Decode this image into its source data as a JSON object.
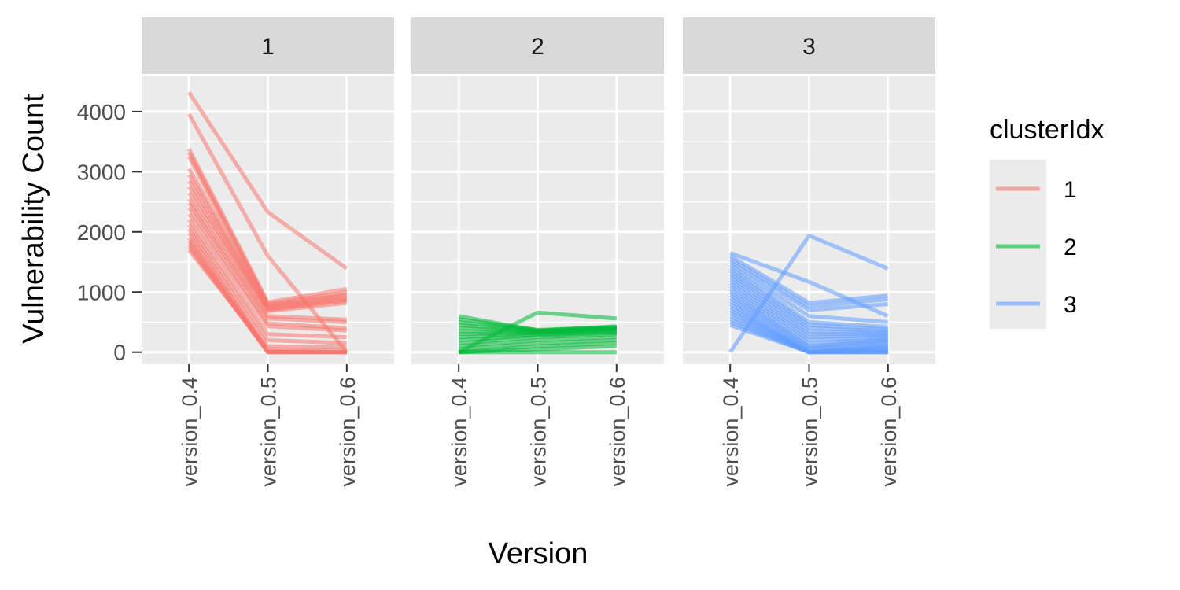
{
  "chart_data": {
    "type": "line",
    "xlabel": "Version",
    "ylabel": "Vulnerability Count",
    "categories": [
      "version_0.4",
      "version_0.5",
      "version_0.6"
    ],
    "ylim": [
      -200,
      4600
    ],
    "y_ticks": [
      0,
      1000,
      2000,
      3000,
      4000
    ],
    "grid": true,
    "legend": {
      "title": "clusterIdx",
      "placement": "right",
      "entries": [
        {
          "label": "1",
          "color": "#F8766D"
        },
        {
          "label": "2",
          "color": "#00BA38"
        },
        {
          "label": "3",
          "color": "#619CFF"
        }
      ]
    },
    "panels": [
      {
        "label": "1",
        "color": "#F8766D",
        "series": [
          {
            "values": [
              4320,
              2330,
              1390
            ]
          },
          {
            "values": [
              3960,
              1600,
              0
            ]
          },
          {
            "values": [
              3380,
              830,
              1050
            ]
          },
          {
            "values": [
              3320,
              800,
              1000
            ]
          },
          {
            "values": [
              3250,
              780,
              960
            ]
          },
          {
            "values": [
              3050,
              760,
              940
            ]
          },
          {
            "values": [
              2950,
              740,
              900
            ]
          },
          {
            "values": [
              2850,
              720,
              880
            ]
          },
          {
            "values": [
              2750,
              700,
              860
            ]
          },
          {
            "values": [
              2650,
              680,
              820
            ]
          },
          {
            "values": [
              2550,
              600,
              540
            ]
          },
          {
            "values": [
              2480,
              560,
              500
            ]
          },
          {
            "values": [
              2400,
              480,
              400
            ]
          },
          {
            "values": [
              2300,
              430,
              360
            ]
          },
          {
            "values": [
              2200,
              300,
              250
            ]
          },
          {
            "values": [
              2120,
              200,
              150
            ]
          },
          {
            "values": [
              2050,
              100,
              80
            ]
          },
          {
            "values": [
              1980,
              20,
              0
            ]
          },
          {
            "values": [
              1900,
              0,
              0
            ]
          },
          {
            "values": [
              1850,
              0,
              0
            ]
          },
          {
            "values": [
              1800,
              0,
              0
            ]
          },
          {
            "values": [
              1750,
              0,
              0
            ]
          },
          {
            "values": [
              1700,
              50,
              20
            ]
          }
        ]
      },
      {
        "label": "2",
        "color": "#00BA38",
        "series": [
          {
            "values": [
              0,
              660,
              560
            ]
          },
          {
            "values": [
              600,
              360,
              430
            ]
          },
          {
            "values": [
              550,
              370,
              420
            ]
          },
          {
            "values": [
              500,
              360,
              410
            ]
          },
          {
            "values": [
              450,
              350,
              400
            ]
          },
          {
            "values": [
              400,
              340,
              390
            ]
          },
          {
            "values": [
              350,
              330,
              380
            ]
          },
          {
            "values": [
              300,
              320,
              360
            ]
          },
          {
            "values": [
              250,
              300,
              340
            ]
          },
          {
            "values": [
              200,
              280,
              320
            ]
          },
          {
            "values": [
              150,
              250,
              300
            ]
          },
          {
            "values": [
              100,
              200,
              250
            ]
          },
          {
            "values": [
              50,
              150,
              200
            ]
          },
          {
            "values": [
              0,
              100,
              150
            ]
          },
          {
            "values": [
              0,
              50,
              100
            ]
          },
          {
            "values": [
              0,
              0,
              0
            ]
          }
        ]
      },
      {
        "label": "3",
        "color": "#619CFF",
        "series": [
          {
            "values": [
              0,
              1940,
              1390
            ]
          },
          {
            "values": [
              1650,
              1170,
              600
            ]
          },
          {
            "values": [
              1600,
              820,
              940
            ]
          },
          {
            "values": [
              1550,
              760,
              880
            ]
          },
          {
            "values": [
              1500,
              700,
              800
            ]
          },
          {
            "values": [
              1450,
              600,
              500
            ]
          },
          {
            "values": [
              1400,
              500,
              420
            ]
          },
          {
            "values": [
              1350,
              450,
              380
            ]
          },
          {
            "values": [
              1300,
              400,
              350
            ]
          },
          {
            "values": [
              1250,
              350,
              320
            ]
          },
          {
            "values": [
              1200,
              300,
              300
            ]
          },
          {
            "values": [
              1150,
              250,
              280
            ]
          },
          {
            "values": [
              1100,
              200,
              250
            ]
          },
          {
            "values": [
              1050,
              150,
              220
            ]
          },
          {
            "values": [
              1000,
              100,
              200
            ]
          },
          {
            "values": [
              950,
              80,
              180
            ]
          },
          {
            "values": [
              900,
              50,
              150
            ]
          },
          {
            "values": [
              850,
              20,
              120
            ]
          },
          {
            "values": [
              800,
              0,
              100
            ]
          },
          {
            "values": [
              750,
              0,
              80
            ]
          },
          {
            "values": [
              700,
              0,
              60
            ]
          },
          {
            "values": [
              650,
              0,
              40
            ]
          },
          {
            "values": [
              600,
              0,
              20
            ]
          },
          {
            "values": [
              550,
              0,
              0
            ]
          },
          {
            "values": [
              500,
              0,
              0
            ]
          },
          {
            "values": [
              450,
              0,
              0
            ]
          }
        ]
      }
    ]
  }
}
